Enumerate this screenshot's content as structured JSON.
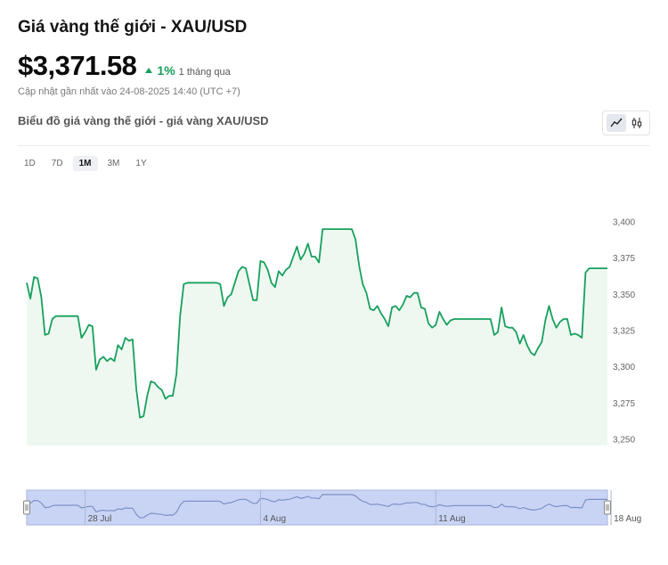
{
  "header": {
    "title": "Giá vàng thế giới - XAU/USD",
    "price": "$3,371.58",
    "change_pct": "1%",
    "change_period": "1 tháng qua",
    "updated": "Cập nhật gần nhất vào 24-08-2025 14:40 (UTC +7)",
    "chart_title": "Biểu đồ giá vàng thế giới - giá vàng XAU/USD"
  },
  "chart_toggle": {
    "line_icon": "line-chart-icon",
    "candle_icon": "candlestick-icon",
    "active": "line"
  },
  "ranges": [
    {
      "label": "1D",
      "active": false
    },
    {
      "label": "7D",
      "active": false
    },
    {
      "label": "1M",
      "active": true
    },
    {
      "label": "3M",
      "active": false
    },
    {
      "label": "1Y",
      "active": false
    }
  ],
  "colors": {
    "line": "#17a05d",
    "area": "#eef8f1",
    "up": "#17a05d",
    "navigator_fill": "#c9d4f5",
    "navigator_line": "#7e90c4"
  },
  "chart_data": {
    "type": "area",
    "series": [
      {
        "values": [
          3358,
          3347,
          3362,
          3361,
          3348,
          3322,
          3323,
          3333,
          3335,
          3335,
          3335,
          3335,
          3335,
          3335,
          3335,
          3320,
          3324,
          3329,
          3328,
          3298,
          3305,
          3307,
          3304,
          3306,
          3304,
          3315,
          3312,
          3320,
          3318,
          3319,
          3285,
          3265,
          3266,
          3280,
          3290,
          3289,
          3286,
          3284,
          3278,
          3280,
          3280,
          3295,
          3335,
          3357,
          3358,
          3358,
          3358,
          3358,
          3358,
          3358,
          3358,
          3358,
          3358,
          3357,
          3342,
          3348,
          3350,
          3358,
          3366,
          3369,
          3368,
          3357,
          3346,
          3346,
          3373,
          3372,
          3367,
          3358,
          3355,
          3366,
          3363,
          3367,
          3369,
          3376,
          3383,
          3374,
          3378,
          3385,
          3376,
          3376,
          3372,
          3395,
          3395,
          3395,
          3395,
          3395,
          3395,
          3395,
          3395,
          3395,
          3388,
          3370,
          3357,
          3351,
          3340,
          3339,
          3342,
          3337,
          3333,
          3328,
          3341,
          3342,
          3339,
          3343,
          3349,
          3348,
          3351,
          3351,
          3341,
          3340,
          3330,
          3327,
          3329,
          3338,
          3333,
          3329,
          3332,
          3333,
          3333,
          3333,
          3333,
          3333,
          3333,
          3333,
          3333,
          3333,
          3333,
          3333,
          3322,
          3324,
          3341,
          3328,
          3327,
          3327,
          3324,
          3316,
          3322,
          3315,
          3310,
          3308,
          3313,
          3317,
          3332,
          3342,
          3333,
          3327,
          3331,
          3333,
          3333,
          3322,
          3323,
          3322,
          3320,
          3365,
          3368,
          3368,
          3368,
          3368,
          3368,
          3368
        ]
      }
    ],
    "y_ticks": [
      "3,400",
      "3,375",
      "3,350",
      "3,325",
      "3,300",
      "3,275",
      "3,250"
    ],
    "ylim": [
      3250,
      3400
    ],
    "navigator_ticks": [
      {
        "label": "28 Jul",
        "index": 16
      },
      {
        "label": "4 Aug",
        "index": 64
      },
      {
        "label": "11 Aug",
        "index": 112
      },
      {
        "label": "18 Aug",
        "index": 160
      }
    ],
    "grid": false,
    "legend": "none"
  }
}
